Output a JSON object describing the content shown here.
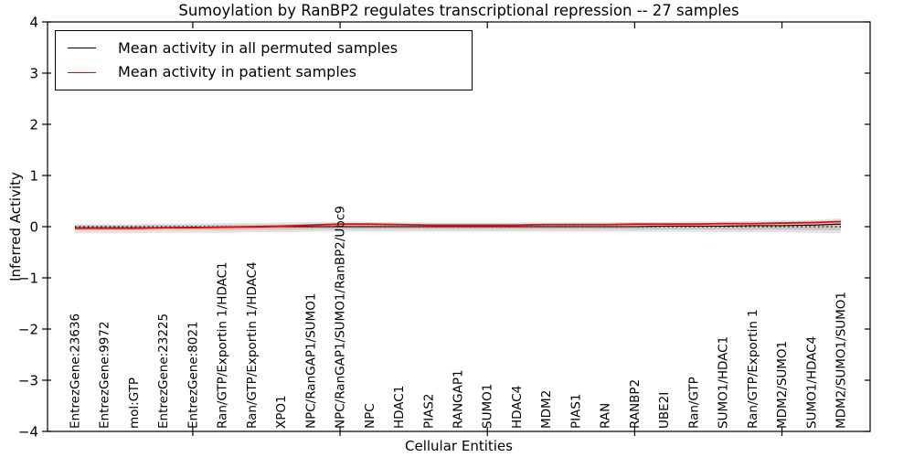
{
  "title": "Sumoylation by RanBP2 regulates transcriptional repression -- 27 samples",
  "chart_data": {
    "type": "line",
    "title": "Sumoylation by RanBP2 regulates transcriptional repression -- 27 samples",
    "xlabel": "Cellular Entities",
    "ylabel": "Inferred Activity",
    "ylim": [
      -4,
      4
    ],
    "yticks": [
      -4,
      -3,
      -2,
      -1,
      0,
      1,
      2,
      3,
      4
    ],
    "xtick_indices": [
      4,
      9,
      14,
      19,
      24
    ],
    "grid": false,
    "legend_position": "upper left",
    "categories": [
      "EntrezGene:23636",
      "EntrezGene:9972",
      "mol:GTP",
      "EntrezGene:23225",
      "EntrezGene:8021",
      "Ran/GTP/Exportin 1/HDAC1",
      "Ran/GTP/Exportin 1/HDAC4",
      "XPO1",
      "NPC/RanGAP1/SUMO1",
      "NPC/RanGAP1/SUMO1/RanBP2/Ubc9",
      "NPC",
      "HDAC1",
      "PIAS2",
      "RANGAP1",
      "SUMO1",
      "HDAC4",
      "MDM2",
      "PIAS1",
      "RAN",
      "RANBP2",
      "UBE2I",
      "Ran/GTP",
      "SUMO1/HDAC1",
      "Ran/GTP/Exportin 1",
      "MDM2/SUMO1",
      "SUMO1/HDAC4",
      "MDM2/SUMO1/SUMO1"
    ],
    "series": [
      {
        "name": "Mean activity in all permuted samples",
        "color": "#000000",
        "values": [
          -0.02,
          -0.02,
          -0.02,
          -0.02,
          -0.01,
          -0.01,
          -0.01,
          0.0,
          0.0,
          0.0,
          0.0,
          0.0,
          0.0,
          0.0,
          0.0,
          0.0,
          0.0,
          0.0,
          0.0,
          0.0,
          0.01,
          0.01,
          0.01,
          0.02,
          0.02,
          0.03,
          0.05
        ]
      },
      {
        "name": "Mean activity in patient samples",
        "color": "#ff0000",
        "values": [
          -0.03,
          -0.03,
          -0.03,
          -0.02,
          -0.02,
          -0.01,
          0.0,
          0.01,
          0.03,
          0.05,
          0.05,
          0.04,
          0.03,
          0.03,
          0.03,
          0.03,
          0.04,
          0.04,
          0.04,
          0.05,
          0.05,
          0.05,
          0.06,
          0.06,
          0.07,
          0.08,
          0.1
        ]
      }
    ],
    "confidence_band": {
      "color_outer": "rgba(100,100,100,0.18)",
      "color_inner": "rgba(100,100,100,0.22)",
      "upper": [
        0.05,
        0.05,
        0.05,
        0.06,
        0.06,
        0.07,
        0.07,
        0.08,
        0.09,
        0.1,
        0.09,
        0.09,
        0.08,
        0.08,
        0.08,
        0.08,
        0.08,
        0.09,
        0.09,
        0.09,
        0.09,
        0.1,
        0.1,
        0.11,
        0.12,
        0.13,
        0.16
      ],
      "lower": [
        -0.13,
        -0.13,
        -0.13,
        -0.12,
        -0.12,
        -0.12,
        -0.11,
        -0.11,
        -0.1,
        -0.1,
        -0.1,
        -0.1,
        -0.1,
        -0.1,
        -0.1,
        -0.1,
        -0.1,
        -0.1,
        -0.1,
        -0.1,
        -0.1,
        -0.1,
        -0.11,
        -0.11,
        -0.11,
        -0.12,
        -0.13
      ]
    },
    "zero_line": true
  }
}
